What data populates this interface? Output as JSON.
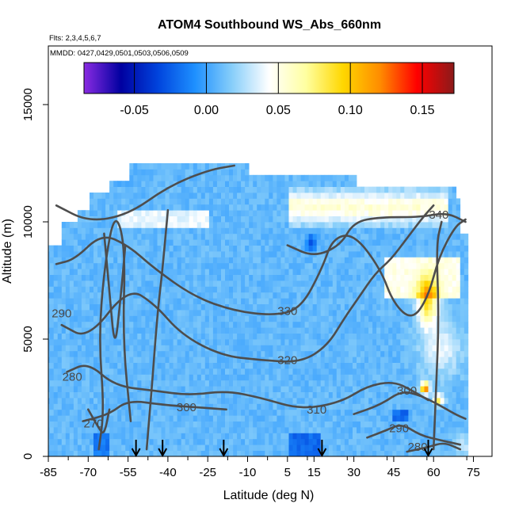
{
  "chart_data": {
    "type": "heatmap",
    "title": "ATOM4 Southbound WS_Abs_660nm",
    "flights_label": "Flts: 2,3,4,5,6,7",
    "dates_label": "MMDD: 0427,0429,0501,0503,0506,0509",
    "xlabel": "Latitude (deg N)",
    "ylabel": "Altitude (m)",
    "xlim": [
      -85,
      82
    ],
    "ylim": [
      0,
      17500
    ],
    "x_ticks": [
      "-85",
      "-70",
      "-55",
      "-40",
      "-25",
      "-10",
      "5",
      "15",
      "30",
      "45",
      "60",
      "75"
    ],
    "y_ticks": [
      "0",
      "5000",
      "10000",
      "15000"
    ],
    "colorbar": {
      "range": [
        -0.085,
        0.172
      ],
      "ticks": [
        "-0.05",
        "0.00",
        "0.05",
        "0.10",
        "0.15"
      ],
      "colors": [
        "#8a2be2",
        "#0000a0",
        "#0044dd",
        "#1e90ff",
        "#87cefa",
        "#ffffff",
        "#ffffa0",
        "#ffd700",
        "#ff8c00",
        "#ff0000",
        "#8b1a1a"
      ]
    },
    "contour_levels": [
      "270",
      "280",
      "290",
      "300",
      "310",
      "320",
      "330",
      "340"
    ],
    "contour_labels": [
      {
        "text": "340",
        "lat": 62,
        "alt": 10300
      },
      {
        "text": "330",
        "lat": 5,
        "alt": 6200
      },
      {
        "text": "320",
        "lat": 5,
        "alt": 4100
      },
      {
        "text": "310",
        "lat": 16,
        "alt": 2000
      },
      {
        "text": "300",
        "lat": -33,
        "alt": 2100
      },
      {
        "text": "300",
        "lat": 50,
        "alt": 2800
      },
      {
        "text": "290",
        "lat": -80,
        "alt": 6100
      },
      {
        "text": "290",
        "lat": 47,
        "alt": 1200
      },
      {
        "text": "280",
        "lat": -76,
        "alt": 3400
      },
      {
        "text": "280",
        "lat": 54,
        "alt": 400
      },
      {
        "text": "270",
        "lat": -68,
        "alt": 1400
      }
    ],
    "profile_markers_lat": [
      -52,
      -42,
      -19,
      18,
      58
    ]
  }
}
